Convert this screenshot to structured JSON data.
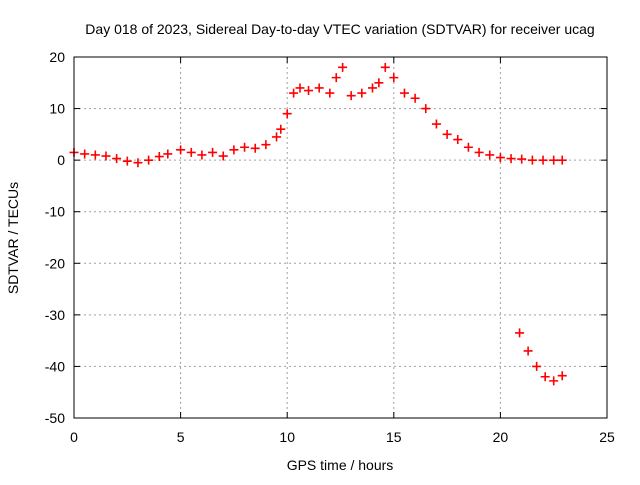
{
  "chart_data": {
    "type": "scatter",
    "title": "Day 018 of 2023, Sidereal Day-to-day VTEC variation (SDTVAR) for receiver ucag",
    "xlabel": "GPS time / hours",
    "ylabel": "SDTVAR / TECUs",
    "xlim": [
      0,
      25
    ],
    "ylim": [
      -50,
      20
    ],
    "x_ticks": [
      0,
      5,
      10,
      15,
      20,
      25
    ],
    "y_ticks": [
      20,
      10,
      0,
      -10,
      -20,
      -30,
      -40,
      -50
    ],
    "x_tick_labels": [
      "0",
      "5",
      "10",
      "15",
      "20",
      "25"
    ],
    "y_tick_labels": [
      "20",
      "10",
      "0",
      "-10",
      "-20",
      "-30",
      "-40",
      "-50"
    ],
    "grid": true,
    "marker": "plus",
    "series": [
      {
        "name": "SDTVAR",
        "color": "#ff0000",
        "x": [
          0.0,
          0.5,
          1.0,
          1.5,
          2.0,
          2.5,
          3.0,
          3.5,
          4.0,
          4.4,
          5.0,
          5.5,
          6.0,
          6.5,
          7.0,
          7.5,
          8.0,
          8.5,
          9.0,
          9.5,
          9.7,
          10.0,
          10.3,
          10.6,
          11.0,
          11.5,
          12.0,
          12.3,
          12.6,
          13.0,
          13.5,
          14.0,
          14.3,
          14.6,
          15.0,
          15.5,
          16.0,
          16.5,
          17.0,
          17.5,
          18.0,
          18.5,
          19.0,
          19.5,
          20.0,
          20.5,
          21.0,
          21.5,
          22.0,
          22.5,
          22.9,
          20.9,
          21.3,
          21.7,
          22.1,
          22.5,
          22.9
        ],
        "y": [
          1.5,
          1.2,
          1.0,
          0.8,
          0.3,
          -0.2,
          -0.5,
          0.0,
          0.7,
          1.2,
          2.0,
          1.5,
          1.0,
          1.5,
          0.8,
          2.0,
          2.5,
          2.3,
          3.0,
          4.5,
          6.0,
          9.0,
          13.0,
          14.0,
          13.5,
          14.0,
          13.0,
          16.0,
          18.0,
          12.5,
          13.0,
          14.0,
          15.0,
          18.0,
          16.0,
          13.0,
          12.0,
          10.0,
          7.0,
          5.0,
          4.0,
          2.5,
          1.5,
          1.0,
          0.5,
          0.3,
          0.2,
          0.0,
          0.0,
          0.0,
          0.0,
          -33.5,
          -37.0,
          -40.0,
          -42.0,
          -42.8,
          -41.8
        ]
      }
    ]
  }
}
